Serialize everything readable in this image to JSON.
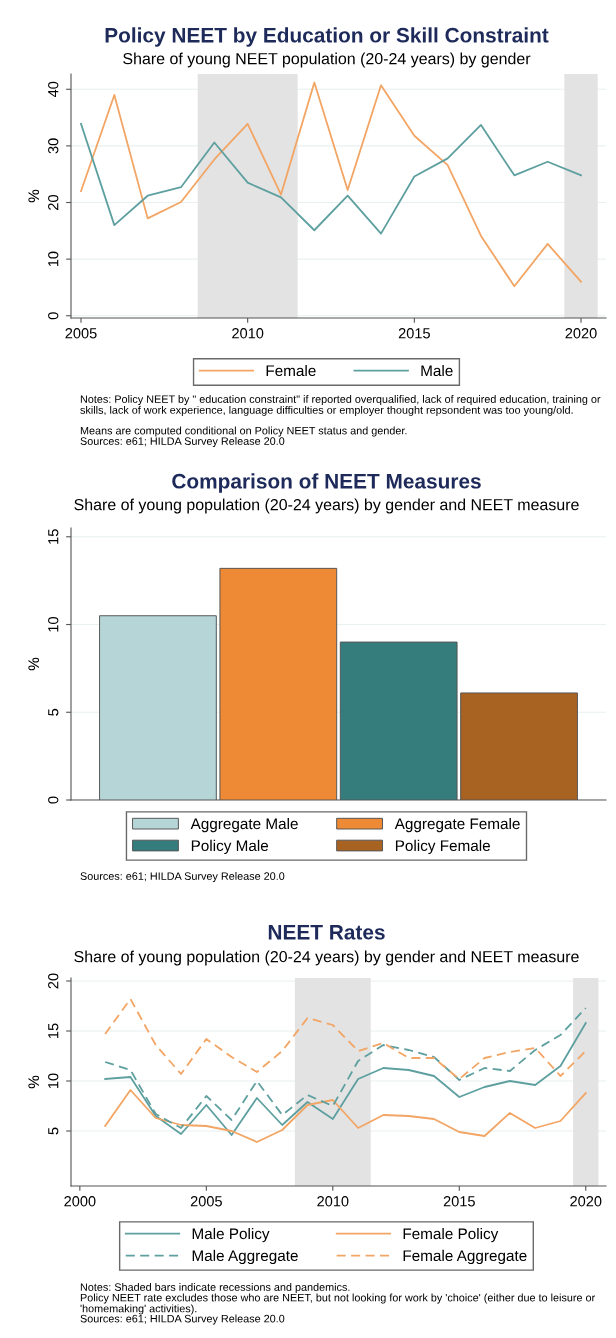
{
  "chart_data": [
    {
      "type": "line",
      "title": "Policy NEET by Education or Skill Constraint",
      "subtitle": "Share of young NEET population (20-24 years) by gender",
      "ylabel": "%",
      "x": [
        2005,
        2006,
        2007,
        2008,
        2009,
        2010,
        2011,
        2012,
        2013,
        2014,
        2015,
        2016,
        2017,
        2018,
        2019,
        2020
      ],
      "series": [
        {
          "name": "Female",
          "color": "#f2a564",
          "values": [
            22.0,
            39.0,
            17.2,
            20.1,
            27.6,
            33.9,
            21.4,
            41.2,
            22.2,
            40.7,
            31.8,
            26.6,
            14.1,
            5.2,
            12.7,
            6.0
          ]
        },
        {
          "name": "Male",
          "color": "#5e9f9f",
          "values": [
            33.9,
            16.0,
            21.2,
            22.7,
            30.6,
            23.5,
            20.9,
            15.1,
            21.2,
            14.5,
            24.6,
            27.8,
            33.7,
            24.8,
            27.2,
            24.8
          ]
        }
      ],
      "xlim": [
        2004.7,
        2020.75
      ],
      "xticks": [
        2005,
        2010,
        2015,
        2020
      ],
      "ylim": [
        -0.4,
        42.7
      ],
      "yticks": [
        0,
        10,
        20,
        30,
        40
      ],
      "bands": [
        {
          "axis": "x",
          "from": 2008.5,
          "to": 2011.5,
          "color": "#e3e3e3"
        },
        {
          "axis": "x",
          "from": 2019.5,
          "to": 2020.5,
          "color": "#e3e3e3"
        }
      ],
      "grid": "y",
      "legend": "bottom",
      "annotations": [
        "Notes: Policy NEET by \" education constraint\" if reported overqualified, lack of required education, training or skills, lack of work experience, language difficulties or employer thought repsondent was too young/old.",
        "Means are computed conditional on Policy NEET status and gender.",
        "Sources: e61; HILDA Survey Release 20.0"
      ]
    },
    {
      "type": "bar",
      "title": "Comparison of NEET Measures",
      "subtitle": "Share of young population (20-24 years) by gender and NEET measure",
      "ylabel": "%",
      "categories": [
        null
      ],
      "series": [
        {
          "name": "Aggregate Male",
          "color": "#b5d5d6",
          "values": [
            10.5
          ]
        },
        {
          "name": "Aggregate Female",
          "color": "#ee8a35",
          "values": [
            13.2
          ]
        },
        {
          "name": "Policy Male",
          "color": "#357d7d",
          "values": [
            9.0
          ]
        },
        {
          "name": "Policy Female",
          "color": "#a86222",
          "values": [
            6.1
          ]
        }
      ],
      "ylim": [
        0,
        15.5
      ],
      "yticks": [
        0,
        5,
        10,
        15
      ],
      "grid": "y",
      "legend": "bottom",
      "annotations": [
        "Sources: e61; HILDA Survey Release 20.0"
      ]
    },
    {
      "type": "line",
      "title": "NEET Rates",
      "subtitle": "Share of young population (20-24 years) by gender and NEET measure",
      "ylabel": "%",
      "x": [
        2001,
        2002,
        2003,
        2004,
        2005,
        2006,
        2007,
        2008,
        2009,
        2010,
        2011,
        2012,
        2013,
        2014,
        2015,
        2016,
        2017,
        2018,
        2019,
        2020
      ],
      "series": [
        {
          "name": "Male Policy",
          "color": "#5e9f9f",
          "line_style": "solid",
          "values": [
            10.2,
            10.4,
            6.5,
            4.7,
            7.6,
            4.6,
            8.3,
            5.6,
            7.9,
            6.2,
            10.2,
            11.3,
            11.1,
            10.5,
            8.4,
            9.4,
            10.0,
            9.6,
            11.5,
            15.8
          ]
        },
        {
          "name": "Female Policy",
          "color": "#f2a564",
          "line_style": "solid",
          "values": [
            5.5,
            9.1,
            6.3,
            5.6,
            5.5,
            5.0,
            3.9,
            5.1,
            7.6,
            8.1,
            5.3,
            6.6,
            6.5,
            6.2,
            4.9,
            4.5,
            6.8,
            5.3,
            6.0,
            8.8
          ]
        },
        {
          "name": "Male Aggregate",
          "color": "#5e9f9f",
          "line_style": "dashed",
          "values": [
            11.9,
            11.1,
            6.7,
            5.3,
            8.5,
            6.1,
            10.0,
            6.6,
            8.6,
            7.5,
            12.0,
            13.6,
            13.1,
            12.4,
            10.1,
            11.3,
            11.0,
            13.1,
            14.6,
            17.3
          ]
        },
        {
          "name": "Female Aggregate",
          "color": "#f2a564",
          "line_style": "dashed",
          "values": [
            14.7,
            18.2,
            13.6,
            10.7,
            14.2,
            12.4,
            10.9,
            13.0,
            16.3,
            15.6,
            13.0,
            13.8,
            12.3,
            12.3,
            10.2,
            12.3,
            12.9,
            13.3,
            10.5,
            13.0
          ]
        }
      ],
      "xlim": [
        1999.65,
        2020.8
      ],
      "xticks": [
        2000,
        2005,
        2010,
        2015,
        2020
      ],
      "ylim": [
        -0.5,
        20.3
      ],
      "yticks": [
        5,
        10,
        15,
        20
      ],
      "bands": [
        {
          "axis": "x",
          "from": 2008.5,
          "to": 2011.5,
          "color": "#e3e3e3"
        },
        {
          "axis": "x",
          "from": 2019.5,
          "to": 2020.5,
          "color": "#e3e3e3"
        }
      ],
      "grid": "y",
      "legend": "bottom",
      "annotations": [
        "Notes: Shaded bars indicate recessions and pandemics.",
        "Policy NEET rate excludes those who are NEET, but not looking for work by 'choice' (either due to leisure or 'homemaking' activities).",
        "Sources: e61; HILDA Survey Release 20.0"
      ]
    }
  ]
}
